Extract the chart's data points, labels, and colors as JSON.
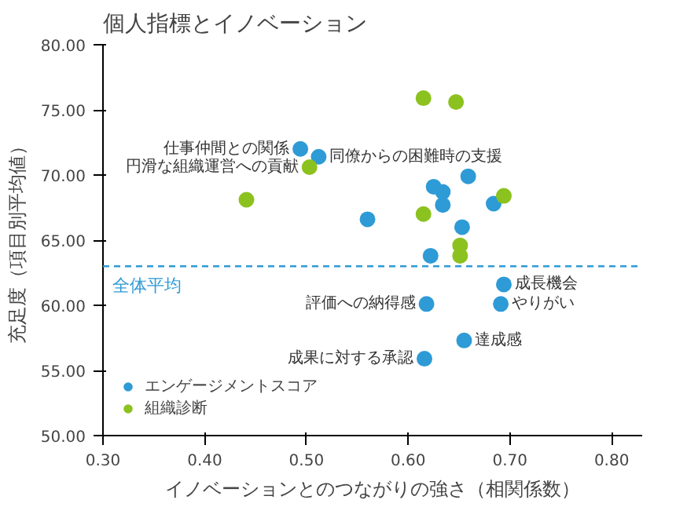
{
  "chart_data": {
    "type": "scatter",
    "title": "個人指標とイノベーション",
    "xlabel": "イノベーションとのつながりの強さ（相関係数）",
    "ylabel": "充足度（項目別平均値）",
    "xlim": [
      0.3,
      0.83
    ],
    "ylim": [
      50,
      80
    ],
    "xticks": [
      {
        "value": 0.3,
        "label": "0.30"
      },
      {
        "value": 0.4,
        "label": "0.40"
      },
      {
        "value": 0.5,
        "label": "0.50"
      },
      {
        "value": 0.6,
        "label": "0.60"
      },
      {
        "value": 0.7,
        "label": "0.70"
      },
      {
        "value": 0.8,
        "label": "0.80"
      }
    ],
    "yticks": [
      {
        "value": 50,
        "label": "50.00"
      },
      {
        "value": 55,
        "label": "55.00"
      },
      {
        "value": 60,
        "label": "60.00"
      },
      {
        "value": 65,
        "label": "65.00"
      },
      {
        "value": 70,
        "label": "70.00"
      },
      {
        "value": 75,
        "label": "75.00"
      },
      {
        "value": 80,
        "label": "80.00"
      }
    ],
    "series": [
      {
        "name": "エンゲージメントスコア",
        "color": "#2e9bd6",
        "x": [
          0.494,
          0.512,
          0.56,
          0.625,
          0.634,
          0.634,
          0.659,
          0.653,
          0.684,
          0.622,
          0.694,
          0.618,
          0.691,
          0.655,
          0.616
        ],
        "values": [
          72.0,
          71.4,
          66.6,
          69.1,
          68.7,
          67.7,
          69.9,
          66.0,
          67.8,
          63.8,
          61.6,
          60.1,
          60.1,
          57.3,
          55.9
        ]
      },
      {
        "name": "組織診断",
        "color": "#8cc21f",
        "x": [
          0.503,
          0.441,
          0.615,
          0.647,
          0.615,
          0.694,
          0.651,
          0.651
        ],
        "values": [
          70.6,
          68.1,
          75.9,
          75.6,
          67.0,
          68.4,
          64.6,
          63.8
        ]
      }
    ],
    "ref_lines": [
      {
        "axis": "y",
        "value": 63.0,
        "label": "全体平均",
        "color": "#2e9bd6",
        "line_style": "dashed"
      }
    ],
    "annotations": [
      {
        "text": "仕事仲間との関係",
        "x": 0.494,
        "y": 72.0
      },
      {
        "text": "同僚からの困難時の支援",
        "x": 0.512,
        "y": 71.4
      },
      {
        "text": "円滑な組織運営への貢献",
        "x": 0.503,
        "y": 70.6
      },
      {
        "text": "成長機会",
        "x": 0.694,
        "y": 61.6
      },
      {
        "text": "評価への納得感",
        "x": 0.618,
        "y": 60.1
      },
      {
        "text": "やりがい",
        "x": 0.691,
        "y": 60.1
      },
      {
        "text": "成果に対する承認",
        "x": 0.616,
        "y": 55.9
      },
      {
        "text": "達成感",
        "x": 0.655,
        "y": 57.3
      }
    ],
    "marker": "circle",
    "grid": false,
    "legend": "bottom left"
  }
}
